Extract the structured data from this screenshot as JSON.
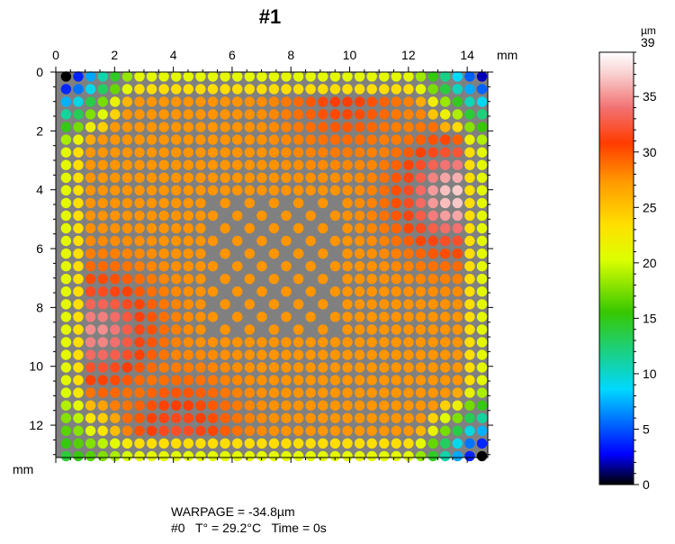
{
  "chart_data": {
    "type": "heatmap",
    "title": "#1",
    "x_unit": "mm",
    "y_unit": "mm",
    "x_ticks": [
      0,
      2,
      4,
      6,
      8,
      10,
      12,
      14
    ],
    "y_ticks": [
      0,
      2,
      4,
      6,
      8,
      10,
      12
    ],
    "xlim": [
      0,
      14.7
    ],
    "ylim": [
      0,
      13.1
    ],
    "grid": {
      "columns": 35,
      "rows": 31,
      "x_start": 0.35,
      "x_end": 14.5,
      "y_start": 0.15,
      "y_end": 13.05,
      "center_void_x": [
        5.2,
        9.8
      ],
      "center_void_y": [
        4.2,
        8.8
      ]
    },
    "value_model": {
      "base": 27.5,
      "center_plateau": 26,
      "hotspots": [
        {
          "x": 13.6,
          "y": 4.2,
          "value": 37
        },
        {
          "x": 1.4,
          "y": 8.8,
          "value": 35
        },
        {
          "x": 4.2,
          "y": 12.3,
          "value": 32
        },
        {
          "x": 9.8,
          "y": 0.7,
          "value": 31
        }
      ],
      "edge_value": 21,
      "corners": [
        {
          "x": 0.35,
          "y": 0.15,
          "value": 0
        },
        {
          "x": 14.5,
          "y": 0.15,
          "value": 2
        },
        {
          "x": 14.5,
          "y": 13.05,
          "value": 0
        },
        {
          "x": 0.35,
          "y": 13.05,
          "value": 14
        }
      ]
    },
    "colorbar": {
      "unit": "µm",
      "min": 0,
      "max": 39,
      "ticks": [
        0,
        5,
        10,
        15,
        20,
        25,
        30,
        35,
        39
      ]
    }
  },
  "footer": {
    "warpage": "WARPAGE = -34.8µm",
    "info": "#0   T° = 29.2°C   Time = 0s"
  }
}
